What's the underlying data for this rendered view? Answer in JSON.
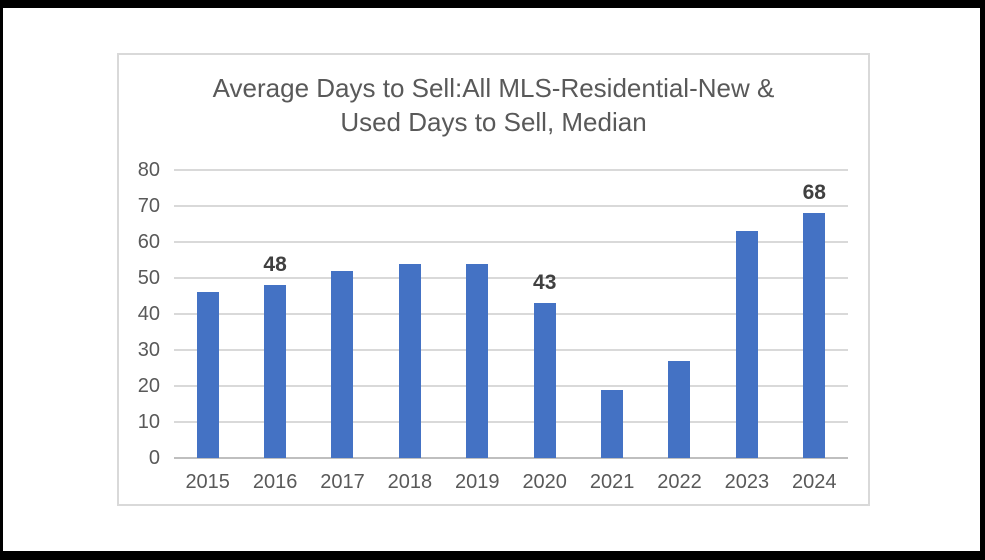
{
  "window": {
    "background": "#ffffff",
    "frame_color": "#000000"
  },
  "chart_data": {
    "type": "bar",
    "title_line1": "Average Days to Sell:All MLS-Residential-New &",
    "title_line2": "Used Days to Sell, Median",
    "categories": [
      "2015",
      "2016",
      "2017",
      "2018",
      "2019",
      "2020",
      "2021",
      "2022",
      "2023",
      "2024"
    ],
    "values": [
      46,
      48,
      52,
      54,
      54,
      43,
      19,
      27,
      63,
      68
    ],
    "data_labels": [
      null,
      "48",
      null,
      null,
      null,
      "43",
      null,
      null,
      null,
      "68"
    ],
    "y_ticks": [
      0,
      10,
      20,
      30,
      40,
      50,
      60,
      70,
      80
    ],
    "ylim": [
      0,
      80
    ],
    "xlabel": "",
    "ylabel": "",
    "legend": "none",
    "grid": true,
    "colors": {
      "bar": "#4472C4",
      "gridline": "#D9D9D9",
      "axis_line": "#BFBFBF",
      "axis_text": "#595959",
      "title_text": "#595959",
      "data_label_text": "#404040",
      "chart_border": "#D9D9D9"
    }
  }
}
